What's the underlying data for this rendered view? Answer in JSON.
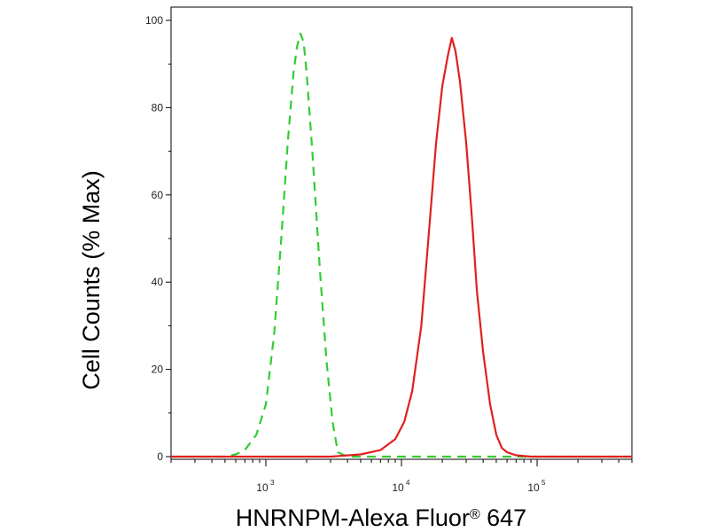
{
  "chart_data": {
    "type": "line",
    "title": "",
    "xlabel": "HNRNPM-Alexa Fluor® 647",
    "xlabel_parts": {
      "main": "HNRNPM-Alexa Fluor",
      "reg": "®",
      "tail": " 647"
    },
    "ylabel": "Cell Counts (% Max)",
    "x_scale": "log",
    "xlim": [
      200,
      500000
    ],
    "ylim": [
      0,
      100
    ],
    "y_ticks": [
      0,
      20,
      40,
      60,
      80,
      100
    ],
    "x_ticks": [
      {
        "value": 1000,
        "base": "10",
        "exp": "3"
      },
      {
        "value": 10000,
        "base": "10",
        "exp": "4"
      },
      {
        "value": 100000,
        "base": "10",
        "exp": "5"
      }
    ],
    "grid": false,
    "series": [
      {
        "color": "#33cc33",
        "dash": "dashed",
        "x": [
          200,
          500,
          600,
          700,
          850,
          1000,
          1150,
          1300,
          1450,
          1600,
          1700,
          1800,
          1900,
          2000,
          2200,
          2500,
          2800,
          3100,
          3400,
          4000,
          6000,
          10000,
          30000,
          100000,
          500000
        ],
        "y": [
          0,
          0,
          0.5,
          1.5,
          5,
          12,
          28,
          50,
          72,
          88,
          94,
          97,
          95,
          88,
          70,
          43,
          22,
          8,
          1,
          0,
          0,
          0,
          0,
          0,
          0
        ]
      },
      {
        "color": "#e02020",
        "dash": "solid",
        "x": [
          200,
          3000,
          5000,
          7000,
          9000,
          10500,
          12000,
          14000,
          16000,
          18000,
          20000,
          22000,
          23500,
          25000,
          27000,
          30000,
          33000,
          36000,
          40000,
          45000,
          50000,
          55000,
          60000,
          70000,
          90000,
          500000
        ],
        "y": [
          0,
          0,
          0.5,
          1.5,
          4,
          8,
          15,
          30,
          52,
          72,
          85,
          92,
          96,
          93,
          86,
          72,
          55,
          38,
          24,
          12,
          5,
          2,
          1,
          0.3,
          0,
          0
        ]
      }
    ]
  }
}
